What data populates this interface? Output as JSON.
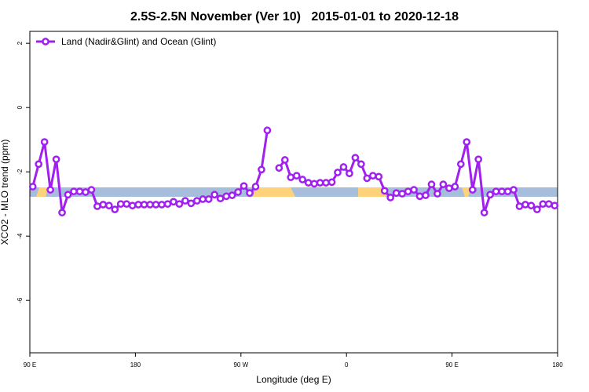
{
  "chart_data": {
    "type": "line",
    "title": "2.5S-2.5N November (Ver 10)   2015-01-01 to 2020-12-18",
    "x_label": "Longitude (deg E)",
    "y_label": "XCO2 - MLO trend (ppm)",
    "legend_position": "top-left",
    "xlim": [
      90,
      540
    ],
    "ylim": [
      -7.63,
      2.37
    ],
    "xticks": [
      {
        "value": 90,
        "label": "90 E"
      },
      180,
      {
        "value": 270,
        "label": "90 W"
      },
      {
        "value": 360,
        "label": "0"
      },
      {
        "value": 450,
        "label": "90 E"
      },
      {
        "value": 540,
        "label": "180"
      }
    ],
    "yticks": [
      2,
      0,
      -2,
      -4,
      -6
    ],
    "x": [
      92.5,
      97.5,
      102.5,
      107.5,
      112.5,
      117.5,
      122.5,
      127.5,
      132.5,
      137.5,
      142.5,
      147.5,
      152.5,
      157.5,
      162.5,
      167.5,
      172.5,
      177.5,
      182.5,
      187.5,
      192.5,
      197.5,
      202.5,
      207.5,
      212.5,
      217.5,
      222.5,
      227.5,
      232.5,
      237.5,
      242.5,
      247.5,
      252.5,
      257.5,
      262.5,
      267.5,
      272.5,
      277.5,
      282.5,
      287.5,
      292.5,
      297.5,
      302.5,
      307.5,
      312.5,
      317.5,
      322.5,
      327.5,
      332.5,
      337.5,
      342.5,
      347.5,
      352.5,
      357.5,
      362.5,
      367.5,
      372.5,
      377.5,
      382.5,
      387.5,
      392.5,
      397.5,
      402.5,
      407.5,
      412.5,
      417.5,
      422.5,
      427.5,
      432.5,
      437.5,
      442.5,
      447.5,
      452.5,
      457.5,
      462.5,
      467.5,
      472.5,
      477.5,
      482.5,
      487.5,
      492.5,
      497.5,
      502.5,
      507.5,
      512.5,
      517.5,
      522.5,
      527.5,
      532.5,
      537.5
    ],
    "series": [
      {
        "name": "Land (Nadir&Glint) and Ocean (Glint)",
        "color": "#a020f0",
        "values": [
          -2.46,
          -1.76,
          -1.07,
          -2.56,
          -1.61,
          -3.27,
          -2.71,
          -2.61,
          -2.61,
          -2.63,
          -2.56,
          -3.07,
          -3.02,
          -3.05,
          -3.17,
          -3.0,
          -3.0,
          -3.05,
          -3.02,
          -3.02,
          -3.02,
          -3.02,
          -3.02,
          -3.0,
          -2.93,
          -3.0,
          -2.9,
          -2.98,
          -2.9,
          -2.85,
          -2.85,
          -2.71,
          -2.83,
          -2.76,
          -2.73,
          -2.63,
          -2.44,
          -2.66,
          -2.46,
          -1.93,
          -0.71,
          null,
          -1.88,
          -1.63,
          -2.17,
          -2.12,
          -2.24,
          -2.34,
          -2.37,
          -2.34,
          -2.34,
          -2.32,
          -2.02,
          -1.85,
          -2.05,
          -1.56,
          -1.76,
          -2.2,
          -2.12,
          -2.15,
          -2.59,
          -2.8,
          -2.66,
          -2.68,
          -2.61,
          -2.56,
          -2.76,
          -2.73,
          -2.39,
          -2.68,
          -2.39,
          -2.51,
          -2.46,
          -1.76,
          -1.07,
          -2.56,
          -1.61,
          -3.27,
          -2.71,
          -2.61,
          -2.61,
          -2.61,
          -2.56,
          -3.07,
          -3.02,
          -3.05,
          -3.17,
          -3.0,
          -3.0,
          -3.05
        ]
      }
    ]
  }
}
